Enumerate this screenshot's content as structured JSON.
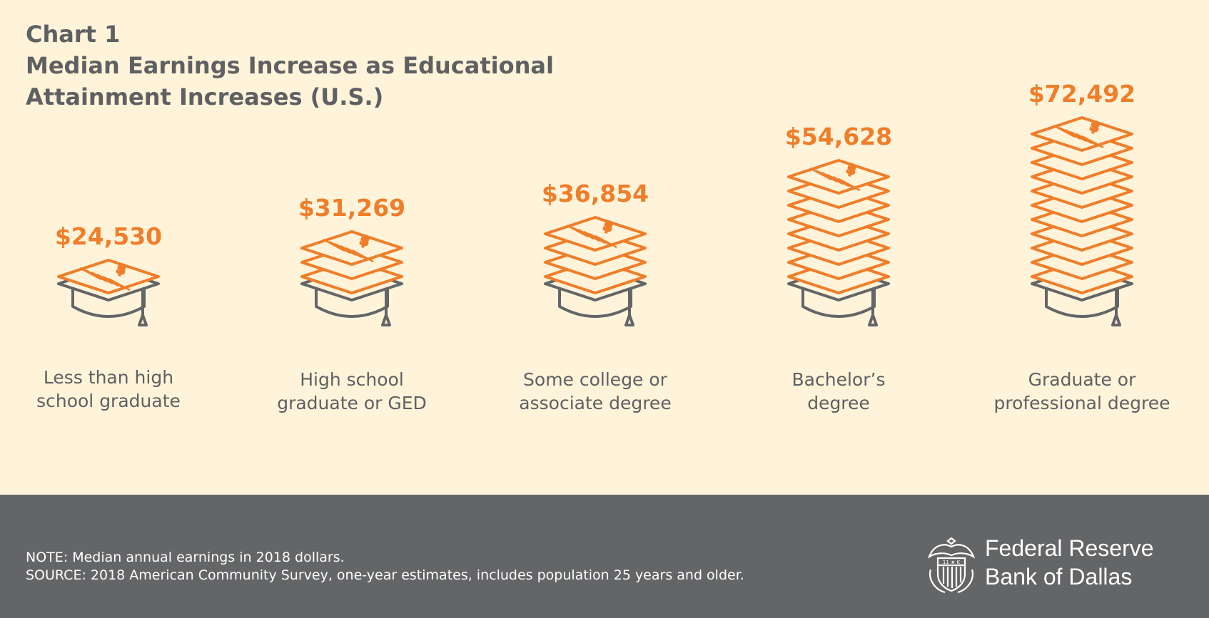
{
  "header": {
    "chart_label": "Chart 1",
    "title": "Median Earnings Increase as Educational Attainment Increases (U.S.)"
  },
  "chart_data": {
    "type": "bar",
    "title": "Median Earnings Increase as Educational Attainment Increases (U.S.)",
    "categories": [
      [
        "Less than high",
        "school graduate"
      ],
      [
        "High school",
        "graduate or GED"
      ],
      [
        "Some college or",
        "associate degree"
      ],
      [
        "Bachelor’s",
        "degree"
      ],
      [
        "Graduate or",
        "professional degree"
      ]
    ],
    "values": [
      24530,
      31269,
      36854,
      54628,
      72492
    ],
    "value_labels": [
      "$24,530",
      "$31,269",
      "$36,854",
      "$54,628",
      "$72,492"
    ],
    "stack_counts": [
      1,
      3,
      4,
      8,
      11
    ],
    "unit": "2018 dollars"
  },
  "colors": {
    "background": "#fff4da",
    "accent": "#f07d2a",
    "text": "#5f6062",
    "cap": "#646567",
    "footer": "#646567"
  },
  "footer": {
    "note": "NOTE: Median annual earnings in 2018 dollars.",
    "source": "SOURCE: 2018 American Community Survey, one-year estimates, includes population 25 years and older.",
    "logo_line1": "Federal Reserve",
    "logo_line2": "Bank of Dallas",
    "logo_icon": "eagle-seal-icon"
  }
}
